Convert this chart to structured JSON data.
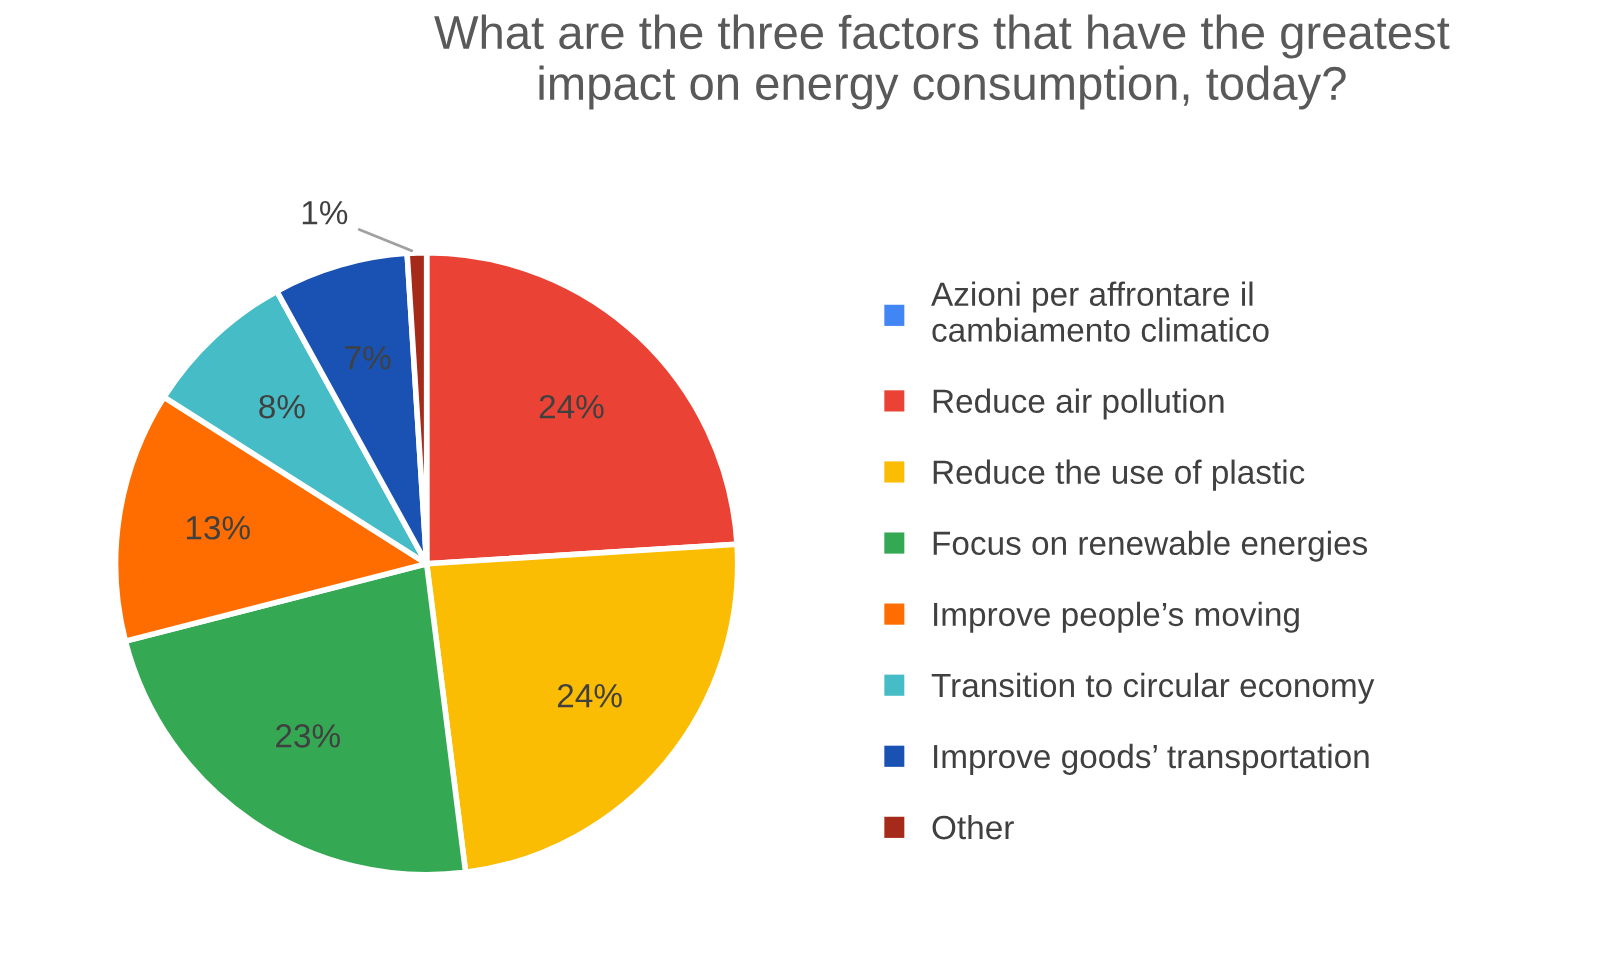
{
  "chart_data": {
    "type": "pie",
    "title": "What are the three factors that have the greatest\nimpact on energy consumption, today?",
    "categories": [
      "Azioni per affrontare il\ncambiamento climatico",
      "Reduce air pollution",
      "Reduce the use of plastic",
      "Focus on renewable energies",
      "Improve people’s moving",
      "Transition to circular economy",
      "Improve goods’ transportation",
      "Other"
    ],
    "values": [
      0,
      24,
      24,
      23,
      13,
      8,
      7,
      1
    ],
    "colors": [
      "#4285f4",
      "#ea4335",
      "#fbbc04",
      "#34a853",
      "#ff6d01",
      "#46bdc6",
      "#1a52b4",
      "#a52a1a"
    ],
    "value_labels": [
      null,
      "24%",
      "24%",
      "23%",
      "13%",
      "8%",
      "7%",
      "1%"
    ],
    "legend": "right"
  }
}
